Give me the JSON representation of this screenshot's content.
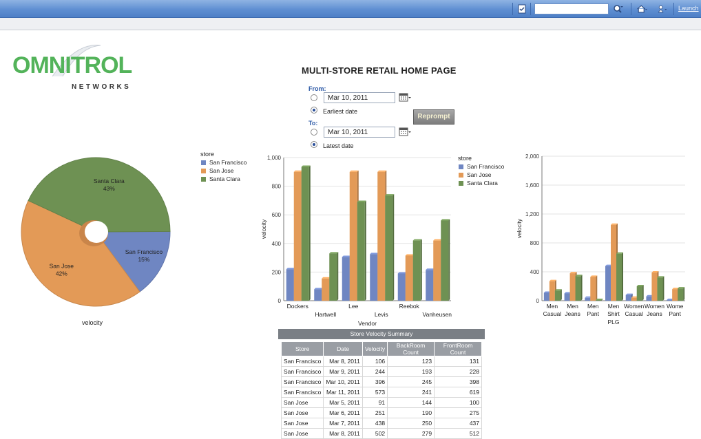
{
  "toolbar": {
    "search_placeholder": "",
    "launch_label": "Launch",
    "icons": [
      "page-icon",
      "search-options-icon",
      "home-icon",
      "user-icon"
    ]
  },
  "logo": {
    "brand_main": "OMNITROL",
    "brand_sub": "NETWORKS"
  },
  "page_title": "MULTI-STORE RETAIL HOME PAGE",
  "prompt": {
    "from_label": "From:",
    "to_label": "To:",
    "from_date": "Mar 10, 2011",
    "to_date": "Mar 10, 2011",
    "earliest_label": "Earliest date",
    "latest_label": "Latest date",
    "reprompt_label": "Reprompt"
  },
  "colors": {
    "san_francisco": "#6f86c2",
    "san_jose": "#e39a57",
    "santa_clara": "#6e9153",
    "title_blue": "#2b58a6"
  },
  "chart_data": [
    {
      "type": "pie",
      "xlabel": "velocity",
      "legend": {
        "title": "store",
        "position": "top-right"
      },
      "categories": [
        "San Francisco",
        "San Jose",
        "Santa Clara"
      ],
      "values": [
        15,
        42,
        43
      ],
      "value_labels": [
        "15%",
        "42%",
        "43%"
      ]
    },
    {
      "type": "bar",
      "xlabel": "Vendor",
      "ylabel": "velocity",
      "ylim": [
        0,
        1000
      ],
      "yticks": [
        "0",
        "200",
        "400",
        "600",
        "800",
        "1,000"
      ],
      "categories": [
        "Dockers",
        "Hartwell",
        "Lee",
        "Levis",
        "Reebok",
        "Vanheusen"
      ],
      "legend": {
        "title": "store",
        "position": "right"
      },
      "series": [
        {
          "name": "San Francisco",
          "values": [
            220,
            80,
            305,
            325,
            190,
            215
          ]
        },
        {
          "name": "San Jose",
          "values": [
            900,
            155,
            900,
            900,
            315,
            420
          ]
        },
        {
          "name": "Santa Clara",
          "values": [
            935,
            330,
            690,
            735,
            420,
            560
          ]
        }
      ]
    },
    {
      "type": "bar",
      "xlabel": "PLG",
      "ylabel": "velocity",
      "ylim": [
        0,
        2000
      ],
      "yticks": [
        "0",
        "400",
        "800",
        "1,200",
        "1,600",
        "2,000"
      ],
      "categories": [
        "Men Casual",
        "Men Jeans",
        "Men Pant",
        "Men Shirt",
        "Women Casual",
        "Women Jeans",
        "Wome Pant"
      ],
      "category_lines": [
        [
          "Men",
          "Casual"
        ],
        [
          "Men",
          "Jeans"
        ],
        [
          "Men",
          "Pant"
        ],
        [
          "Men",
          "Shirt"
        ],
        [
          "Women",
          "Casual"
        ],
        [
          "Women",
          "Jeans"
        ],
        [
          "Wome",
          "Pant"
        ]
      ],
      "series": [
        {
          "name": "San Francisco",
          "values": [
            110,
            100,
            40,
            480,
            80,
            60,
            10
          ]
        },
        {
          "name": "San Jose",
          "values": [
            270,
            380,
            330,
            1050,
            40,
            390,
            160
          ]
        },
        {
          "name": "Santa Clara",
          "values": [
            140,
            340,
            10,
            650,
            200,
            320,
            170
          ]
        }
      ]
    }
  ],
  "table": {
    "title": "Store Velocity Summary",
    "columns": [
      "Store",
      "Date",
      "Velocity",
      "BackRoom Count",
      "FrontRoom Count"
    ],
    "rows": [
      [
        "San Francisco",
        "Mar 8, 2011",
        "106",
        "123",
        "131"
      ],
      [
        "San Francisco",
        "Mar 9, 2011",
        "244",
        "193",
        "228"
      ],
      [
        "San Francisco",
        "Mar 10, 2011",
        "396",
        "245",
        "398"
      ],
      [
        "San Francisco",
        "Mar 11, 2011",
        "573",
        "241",
        "619"
      ],
      [
        "San Jose",
        "Mar 5, 2011",
        "91",
        "144",
        "100"
      ],
      [
        "San Jose",
        "Mar 6, 2011",
        "251",
        "190",
        "275"
      ],
      [
        "San Jose",
        "Mar 7, 2011",
        "438",
        "250",
        "437"
      ],
      [
        "San Jose",
        "Mar 8, 2011",
        "502",
        "279",
        "512"
      ]
    ]
  }
}
